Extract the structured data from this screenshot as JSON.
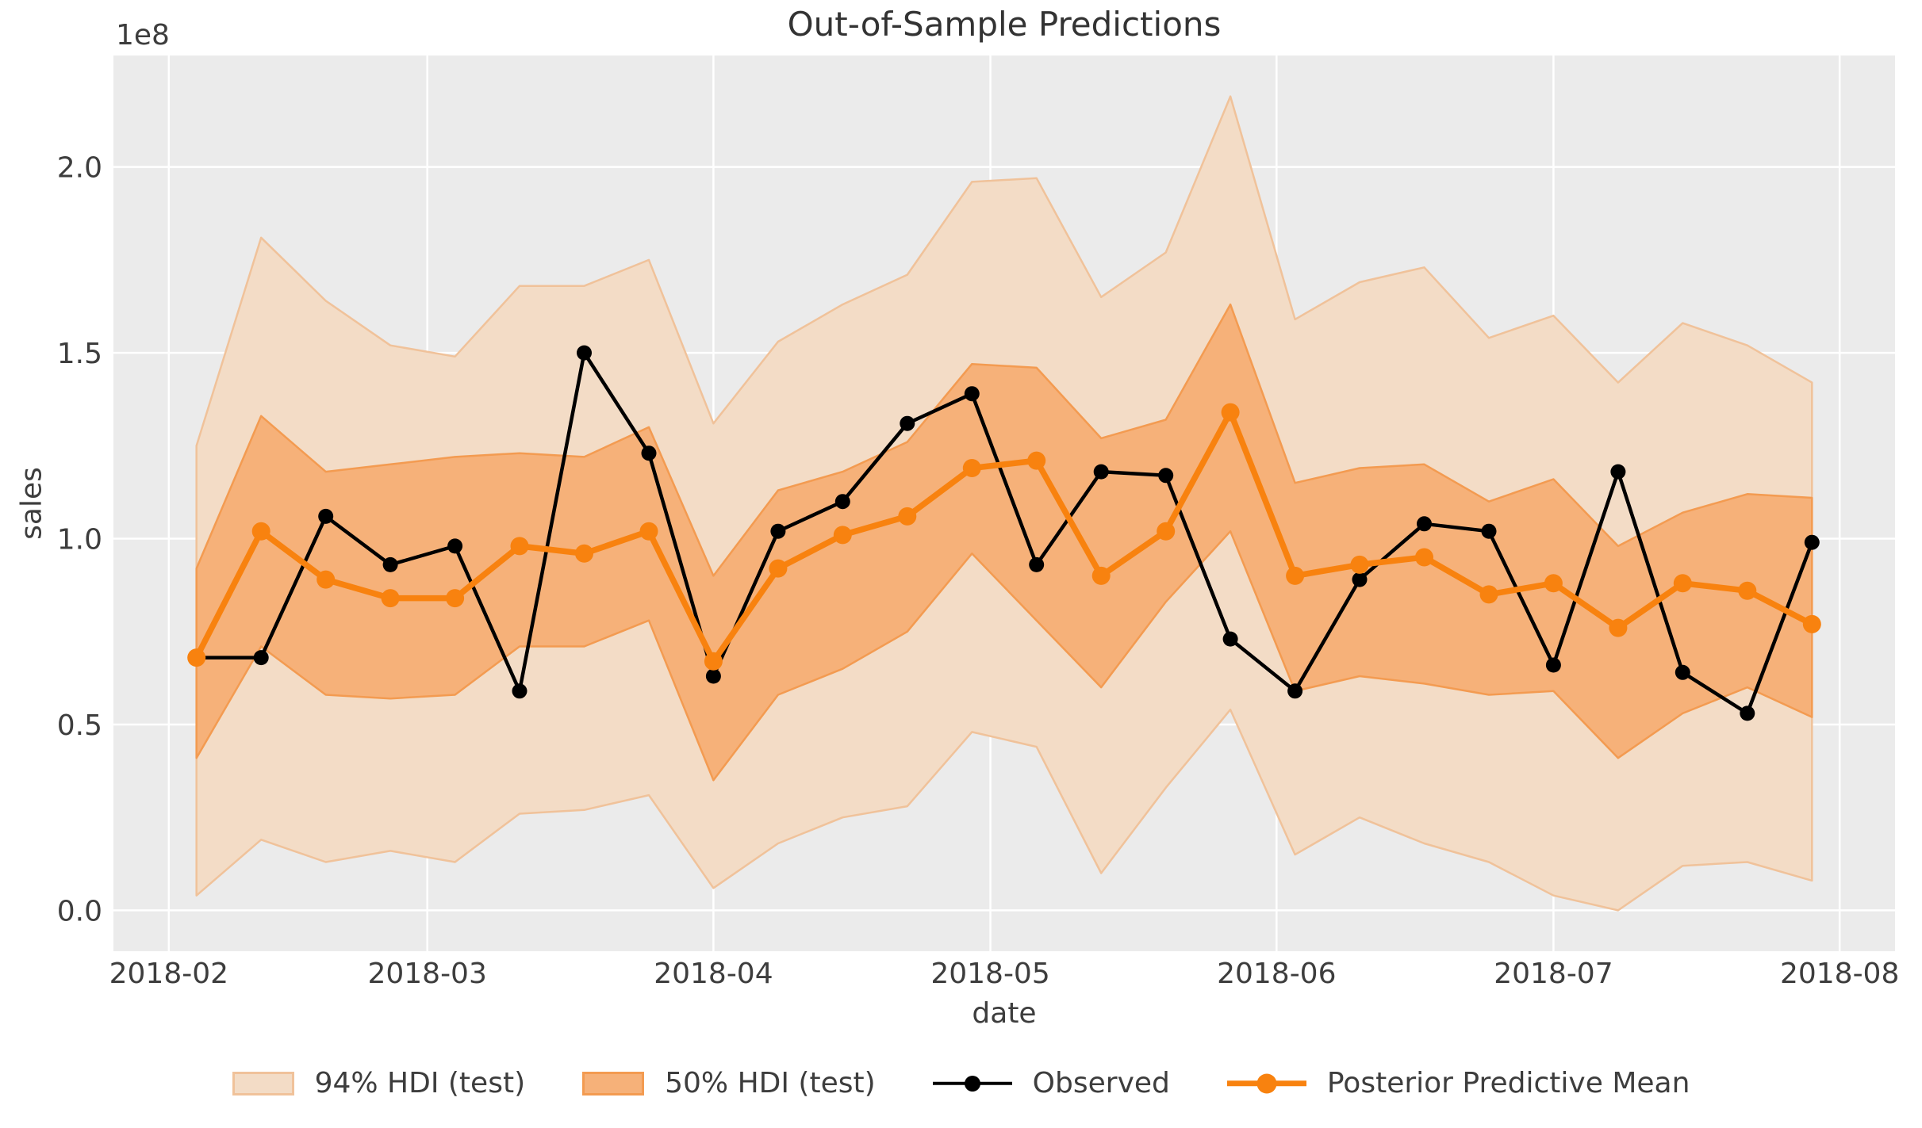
{
  "figure": {
    "title": "Out-of-Sample Predictions",
    "y_offset_label": "1e8",
    "xlabel": "date",
    "ylabel": "sales"
  },
  "legend": {
    "items": [
      {
        "label": "94% HDI (test)",
        "kind": "patch"
      },
      {
        "label": "50% HDI (test)",
        "kind": "patch"
      },
      {
        "label": "Observed",
        "kind": "line-marker"
      },
      {
        "label": "Posterior Predictive Mean",
        "kind": "line-marker"
      }
    ]
  },
  "colors": {
    "axes_background": "#ebebeb",
    "grid": "#ffffff",
    "hdi94_fill": "#f3dcc6",
    "hdi94_edge": "#f0c29a",
    "hdi50_fill": "#f6b179",
    "hdi50_edge": "#f39b51",
    "observed": "#000000",
    "posterior_mean": "#f8820f",
    "text": "#3d3d3d"
  },
  "chart_data": {
    "type": "line",
    "title": "Out-of-Sample Predictions",
    "xlabel": "date",
    "ylabel": "sales",
    "y_scale_offset": "1e8",
    "y_units_note": "all y values are in units of 1e8 sales",
    "grid": true,
    "legend_position": "bottom-center-outside",
    "x_tick_labels": [
      "2018-02",
      "2018-03",
      "2018-04",
      "2018-05",
      "2018-06",
      "2018-07",
      "2018-08"
    ],
    "x_tick_dates": [
      "2018-02-01",
      "2018-03-01",
      "2018-04-01",
      "2018-05-01",
      "2018-06-01",
      "2018-07-01",
      "2018-08-01"
    ],
    "y_ticks": [
      0.0,
      0.5,
      1.0,
      1.5,
      2.0
    ],
    "ylim": [
      -0.11,
      2.3
    ],
    "xlim": [
      "2018-01-26",
      "2018-08-07"
    ],
    "x": [
      "2018-02-04",
      "2018-02-11",
      "2018-02-18",
      "2018-02-25",
      "2018-03-04",
      "2018-03-11",
      "2018-03-18",
      "2018-03-25",
      "2018-04-01",
      "2018-04-08",
      "2018-04-15",
      "2018-04-22",
      "2018-04-29",
      "2018-05-06",
      "2018-05-13",
      "2018-05-20",
      "2018-05-27",
      "2018-06-03",
      "2018-06-10",
      "2018-06-17",
      "2018-06-24",
      "2018-07-01",
      "2018-07-08",
      "2018-07-15",
      "2018-07-22",
      "2018-07-29"
    ],
    "series": [
      {
        "name": "Observed",
        "type": "line+markers",
        "color": "#000000",
        "values": [
          0.68,
          0.68,
          1.06,
          0.93,
          0.98,
          0.59,
          1.5,
          1.23,
          0.63,
          1.02,
          1.1,
          1.31,
          1.39,
          0.93,
          1.18,
          1.17,
          0.73,
          0.59,
          0.89,
          1.04,
          1.02,
          0.66,
          1.18,
          0.64,
          0.53,
          0.99
        ]
      },
      {
        "name": "Posterior Predictive Mean",
        "type": "line+markers",
        "color": "#f8820f",
        "values": [
          0.68,
          1.02,
          0.89,
          0.84,
          0.84,
          0.98,
          0.96,
          1.02,
          0.67,
          0.92,
          1.01,
          1.06,
          1.19,
          1.21,
          0.9,
          1.02,
          1.34,
          0.9,
          0.93,
          0.95,
          0.85,
          0.88,
          0.76,
          0.88,
          0.86,
          0.77
        ]
      },
      {
        "name": "94% HDI (test)",
        "type": "band",
        "fill": "#f3dcc6",
        "upper": [
          1.25,
          1.81,
          1.64,
          1.52,
          1.49,
          1.68,
          1.68,
          1.75,
          1.31,
          1.53,
          1.63,
          1.71,
          1.96,
          1.97,
          1.65,
          1.77,
          2.19,
          1.59,
          1.69,
          1.73,
          1.54,
          1.6,
          1.42,
          1.58,
          1.52,
          1.42
        ],
        "lower": [
          0.04,
          0.19,
          0.13,
          0.16,
          0.13,
          0.26,
          0.27,
          0.31,
          0.06,
          0.18,
          0.25,
          0.28,
          0.48,
          0.44,
          0.1,
          0.33,
          0.54,
          0.15,
          0.25,
          0.18,
          0.13,
          0.04,
          0.0,
          0.12,
          0.13,
          0.08
        ]
      },
      {
        "name": "50% HDI (test)",
        "type": "band",
        "fill": "#f6b179",
        "upper": [
          0.92,
          1.33,
          1.18,
          1.2,
          1.22,
          1.23,
          1.22,
          1.3,
          0.9,
          1.13,
          1.18,
          1.26,
          1.47,
          1.46,
          1.27,
          1.32,
          1.63,
          1.15,
          1.19,
          1.2,
          1.1,
          1.16,
          0.98,
          1.07,
          1.12,
          1.11
        ],
        "lower": [
          0.41,
          0.71,
          0.58,
          0.57,
          0.58,
          0.71,
          0.71,
          0.78,
          0.35,
          0.58,
          0.65,
          0.75,
          0.96,
          0.78,
          0.6,
          0.83,
          1.02,
          0.59,
          0.63,
          0.61,
          0.58,
          0.59,
          0.41,
          0.53,
          0.6,
          0.52
        ]
      }
    ]
  }
}
